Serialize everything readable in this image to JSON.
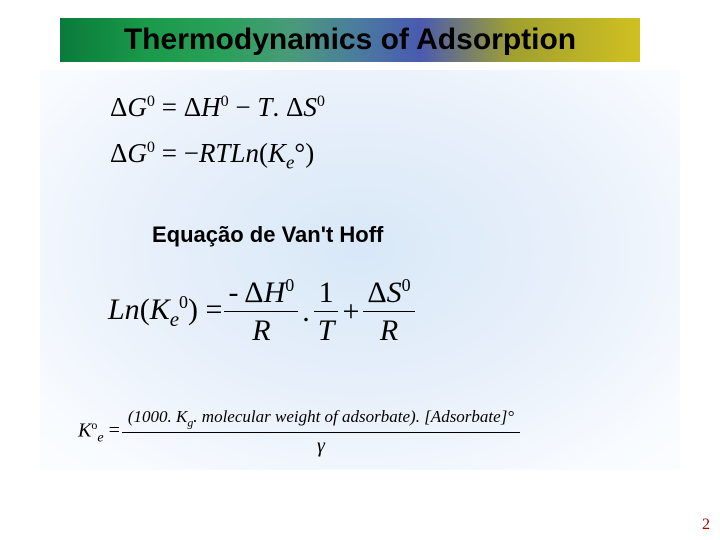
{
  "title": "Thermodynamics of Adsorption",
  "title_style": {
    "gradient_colors": [
      "#0a7a3a",
      "#1a9a4a",
      "#2aa05a",
      "#4a9a7a",
      "#4a7aa0",
      "#4a5ab0",
      "#a0a030",
      "#d0c020"
    ],
    "font_size_pt": 22,
    "font_weight": "bold",
    "text_color": "#000000"
  },
  "content_bg": {
    "type": "radial-gradient",
    "inner_color": "#d8e8f8",
    "outer_color": "#ffffff"
  },
  "equations": {
    "eq1": {
      "delta": "Δ",
      "G": "G",
      "sup0": "0",
      "eq": " = ",
      "H": "H",
      "minus": " − ",
      "T": "T",
      "dot": ". ",
      "S": "S"
    },
    "eq2": {
      "delta": "Δ",
      "G": "G",
      "sup": "0",
      "eq": " = −",
      "RT": "RT",
      "Ln": "Ln",
      "lpar": "(",
      "K": "K",
      "sub_e": "e",
      "deg": "°",
      "rpar": ")"
    },
    "eq3": {
      "Ln": "Ln",
      "K": "K",
      "sub_e": "e",
      "sup0": "0",
      "eq": " = ",
      "frac1_num_prefix": "- ",
      "frac1_num_delta": "Δ",
      "frac1_num_H": "H",
      "frac1_num_sup": "0",
      "frac1_den": "R",
      "dot": ".",
      "frac2_num": "1",
      "frac2_den": "T",
      "plus": "+",
      "frac3_num_delta": "Δ",
      "frac3_num_S": "S",
      "frac3_num_sup": "0",
      "frac3_den": "R"
    },
    "eq4": {
      "K": "K",
      "sup": "o",
      "sub": "e",
      "eq": " = ",
      "num": "(1000. K",
      "num_g": "g",
      "num_rest": ". molecular weight of adsorbate). [Adsorbate]°",
      "den": "γ"
    }
  },
  "subheading": "Equação de Van't Hoff",
  "page_number": "2",
  "typography": {
    "title_font": "Arial",
    "body_font": "Times New Roman",
    "subheading_fontsize_pt": 16,
    "eq_fontsize_pt": 22,
    "pagenum_color": "#b00000"
  }
}
